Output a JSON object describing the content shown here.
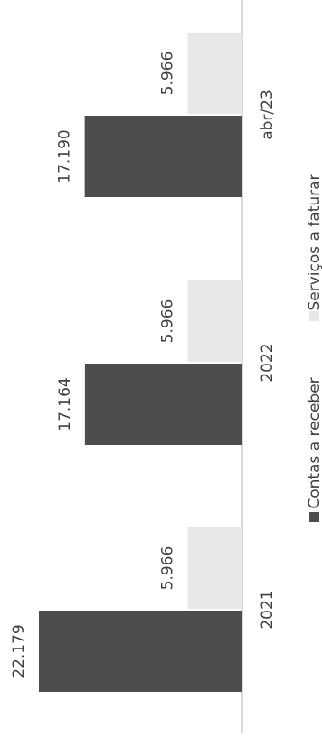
{
  "chart_data": {
    "type": "bar",
    "orientation": "horizontal",
    "title": "",
    "categories": [
      "2021",
      "2022",
      "abr/23"
    ],
    "series": [
      {
        "name": "Contas a receber",
        "values": [
          22179,
          17164,
          17190
        ],
        "labels": [
          "22.179",
          "17.164",
          "17.190"
        ],
        "color": "#4d4d4d"
      },
      {
        "name": "Serviços a faturar",
        "values": [
          5966,
          5966,
          5966
        ],
        "labels": [
          "5.966",
          "5.966",
          "5.966"
        ],
        "color": "#e8e8e8"
      }
    ],
    "xlim": [
      0,
      24000
    ],
    "grid": false,
    "legend_position": "bottom"
  }
}
